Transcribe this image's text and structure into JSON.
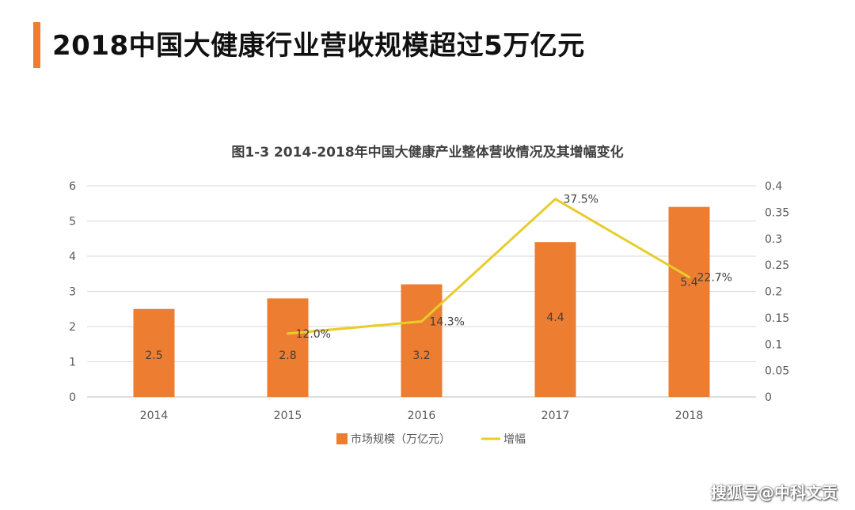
{
  "page": {
    "headline": "2018中国大健康行业营收规模超过5万亿元",
    "accent_color": "#ed7d31",
    "watermark": "搜狐号@中科文贡"
  },
  "chart_data": {
    "type": "bar",
    "title": "图1-3 2014-2018年中国大健康产业整体营收情况及其增幅变化",
    "categories": [
      "2014",
      "2015",
      "2016",
      "2017",
      "2018"
    ],
    "left_axis": {
      "ylim": [
        0,
        6
      ],
      "ticks": [
        "0",
        "1",
        "2",
        "3",
        "4",
        "5",
        "6"
      ]
    },
    "right_axis": {
      "ylim": [
        0,
        0.4
      ],
      "ticks": [
        "0",
        "0.05",
        "0.1",
        "0.15",
        "0.2",
        "0.25",
        "0.3",
        "0.35",
        "0.4"
      ]
    },
    "grid": true,
    "legend_position": "bottom",
    "series": [
      {
        "name": "市场规模（万亿元）",
        "type": "bar",
        "axis": "left",
        "color": "#ed7d31",
        "values": [
          2.5,
          2.8,
          3.2,
          4.4,
          5.4
        ],
        "labels": [
          "2.5",
          "2.8",
          "3.2",
          "4.4",
          "5.4"
        ]
      },
      {
        "name": "增幅",
        "type": "line",
        "axis": "right",
        "color": "#e8cc2c",
        "values": [
          null,
          0.12,
          0.143,
          0.375,
          0.227
        ],
        "labels": [
          null,
          "12.0%",
          "14.3%",
          "37.5%",
          "22.7%"
        ]
      }
    ]
  }
}
